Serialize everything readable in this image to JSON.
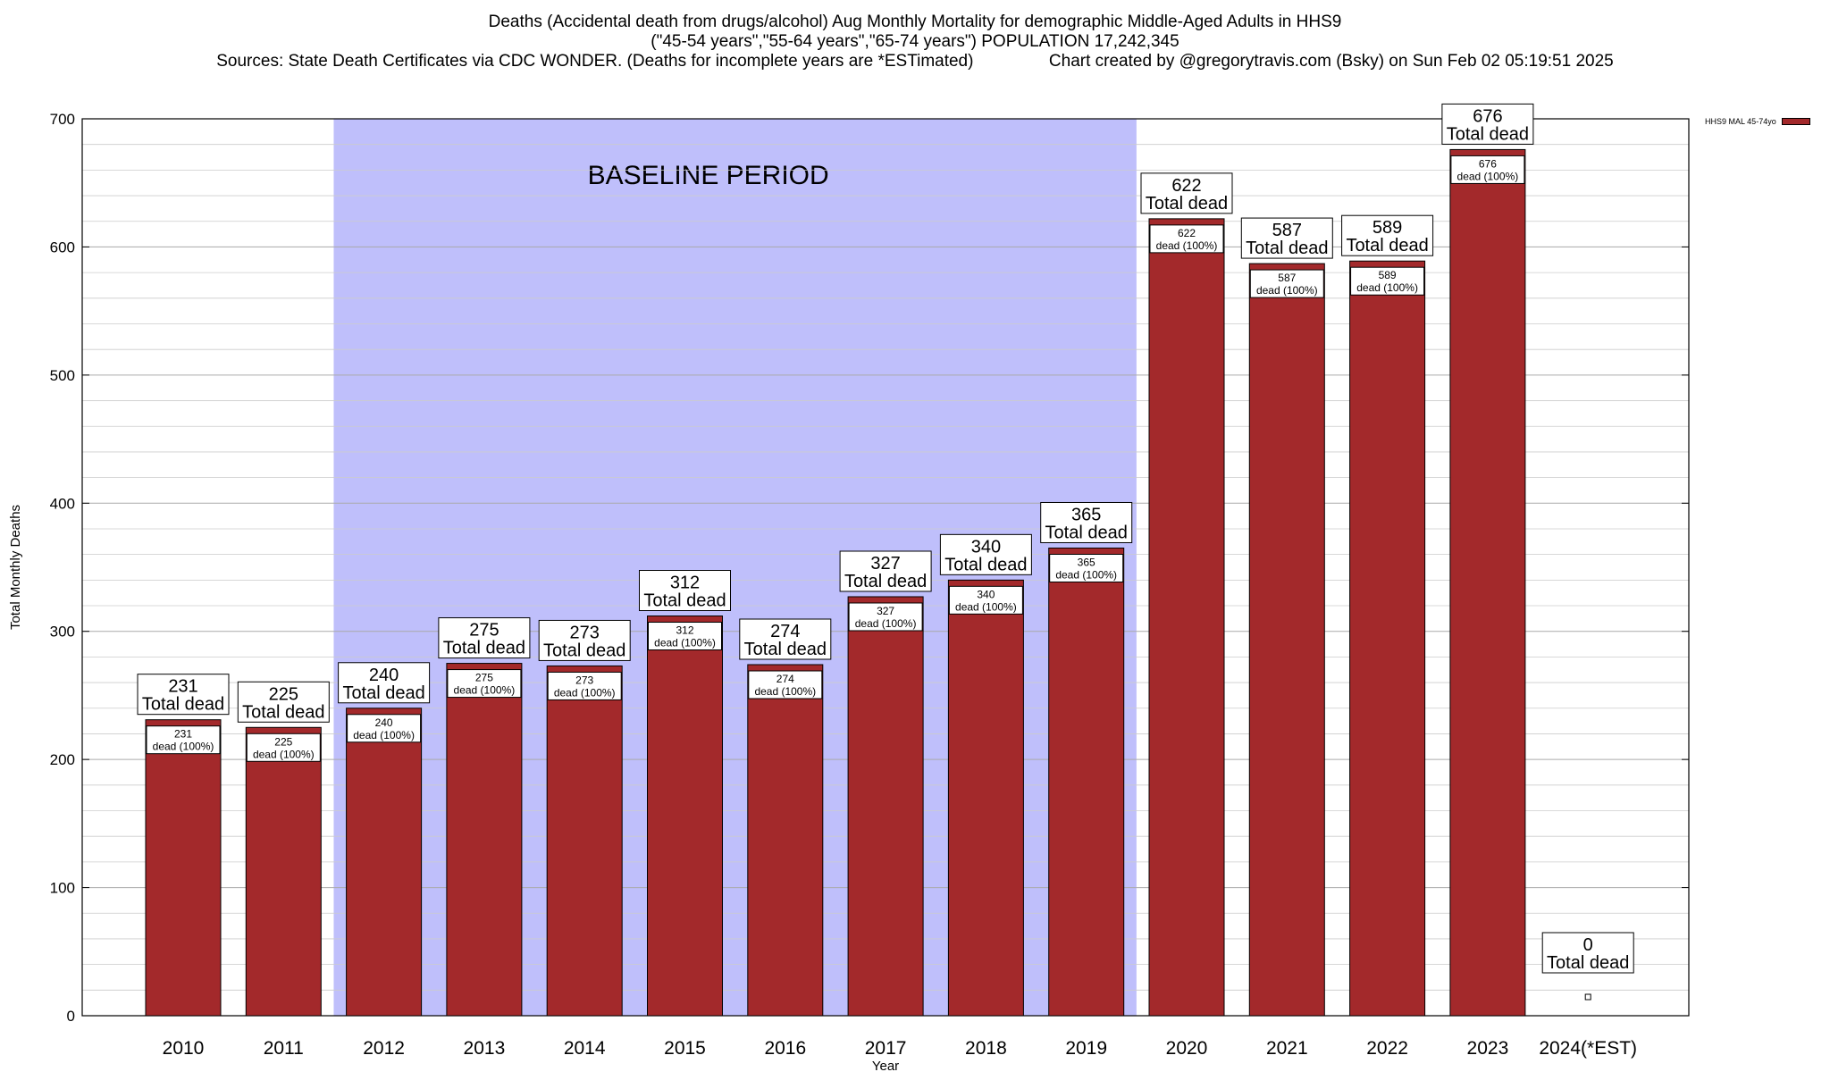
{
  "title_lines": [
    "Deaths (Accidental death from drugs/alcohol) Aug Monthly Mortality for demographic Middle-Aged Adults in HHS9",
    "(\"45-54 years\",\"55-64 years\",\"65-74 years\") POPULATION 17,242,345",
    "Sources: State Death Certificates via CDC WONDER. (Deaths for incomplete years are *ESTimated)                Chart created by @gregorytravis.com (Bsky) on Sun Feb 02 05:19:51 2025"
  ],
  "legend_label": "HHS9 MAL 45-74yo",
  "colors": {
    "bar": "#a3292b",
    "baseline_band": "#bfbffb"
  },
  "chart_data": {
    "type": "bar",
    "categories": [
      "2010",
      "2011",
      "2012",
      "2013",
      "2014",
      "2015",
      "2016",
      "2017",
      "2018",
      "2019",
      "2020",
      "2021",
      "2022",
      "2023",
      "2024(*EST)"
    ],
    "series": [
      {
        "name": "HHS9 MAL 45-74yo",
        "values": [
          231,
          225,
          240,
          275,
          273,
          312,
          274,
          327,
          340,
          365,
          622,
          587,
          589,
          676,
          0
        ]
      }
    ],
    "total_label": "Total dead",
    "inner_label_suffix": "dead (100%)",
    "xlabel": "Year",
    "ylabel": "Total Monthly Deaths",
    "ylim": [
      0,
      700
    ],
    "yticks": [
      0,
      100,
      200,
      300,
      400,
      500,
      600,
      700
    ],
    "annotation": {
      "text": "BASELINE PERIOD",
      "x_range": [
        "2012",
        "2019"
      ]
    },
    "grid": true,
    "legend_position": "top-right"
  }
}
